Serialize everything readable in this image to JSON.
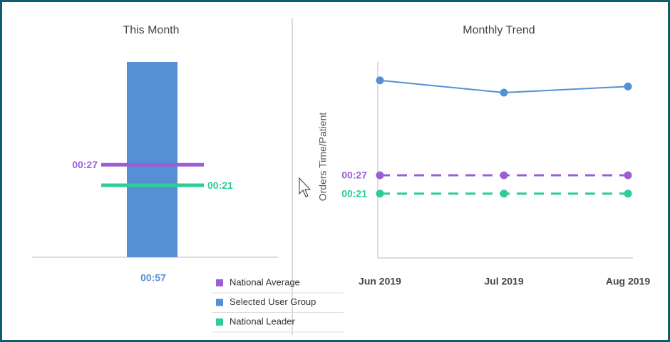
{
  "chart_data": [
    {
      "type": "bar",
      "title": "This Month",
      "ylim": [
        0,
        57
      ],
      "series": [
        {
          "name": "National Average",
          "color": "#9b5fd3",
          "mark": "hline",
          "values": [
            27
          ],
          "value_labels": [
            "00:27"
          ]
        },
        {
          "name": "Selected User Group",
          "color": "#5590d4",
          "mark": "bar",
          "values": [
            57
          ],
          "value_labels": [
            "00:57"
          ]
        },
        {
          "name": "National Leader",
          "color": "#2ecc96",
          "mark": "hline",
          "values": [
            21
          ],
          "value_labels": [
            "00:21"
          ]
        }
      ]
    },
    {
      "type": "line",
      "title": "Monthly Trend",
      "y_label": "Orders Time/Patient",
      "categories": [
        "Jun 2019",
        "Jul 2019",
        "Aug 2019"
      ],
      "ylim": [
        0,
        64
      ],
      "series": [
        {
          "color": "#5590d4",
          "dashed": false,
          "values": [
            58,
            54,
            56
          ]
        },
        {
          "color": "#9b5fd3",
          "dashed": true,
          "values": [
            27,
            27,
            27
          ],
          "value_labels": [
            "00:27",
            null,
            null
          ]
        },
        {
          "color": "#2ecc96",
          "dashed": true,
          "values": [
            21,
            21,
            21
          ],
          "value_labels": [
            "00:21",
            null,
            null
          ]
        }
      ]
    }
  ]
}
